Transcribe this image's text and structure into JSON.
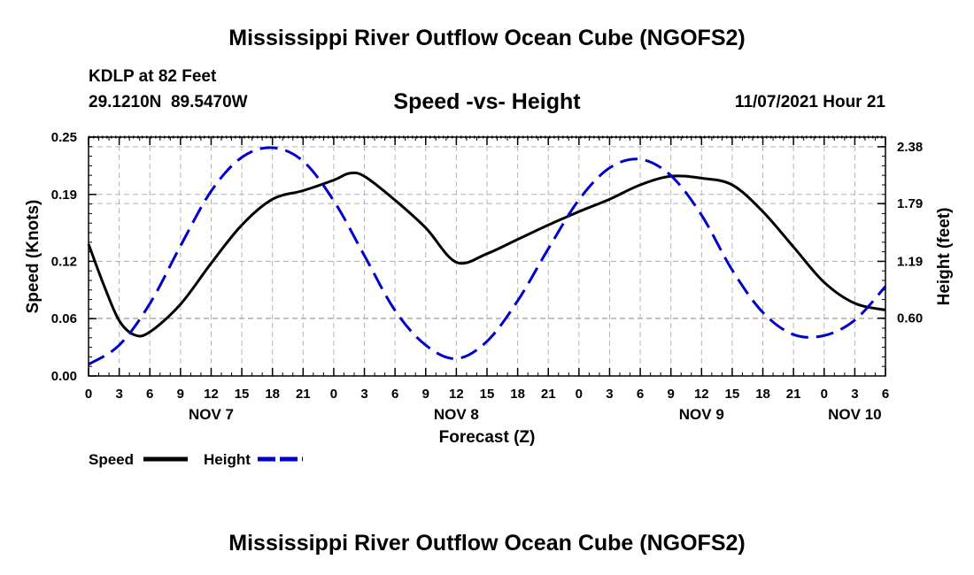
{
  "page": {
    "title": "Mississippi River Outflow Ocean Cube (NGOFS2)",
    "station_line": "KDLP at 82 Feet",
    "coords_line": "29.1210N  89.5470W",
    "subtitle": "Speed -vs- Height",
    "datetime": "11/07/2021 Hour 21",
    "footer_title": "Mississippi River Outflow Ocean Cube (NGOFS2)"
  },
  "colors": {
    "speed": "#000000",
    "height": "#0000cc",
    "grid": "#b4b4b4"
  },
  "chart_data": {
    "type": "line",
    "title": "Speed -vs- Height",
    "xlabel": "Forecast (Z)",
    "ylabel": "Speed (Knots)",
    "y2label": "Height (feet)",
    "x_unit": "hours from Nov 7 00Z",
    "xlim": [
      0,
      78
    ],
    "x_ticks": [
      0,
      3,
      6,
      9,
      12,
      15,
      18,
      21,
      24,
      27,
      30,
      33,
      36,
      39,
      42,
      45,
      48,
      51,
      54,
      57,
      60,
      63,
      66,
      69,
      72,
      75,
      78
    ],
    "x_tick_labels": [
      "0",
      "3",
      "6",
      "9",
      "12",
      "15",
      "18",
      "21",
      "0",
      "3",
      "6",
      "9",
      "12",
      "15",
      "18",
      "21",
      "0",
      "3",
      "6",
      "9",
      "12",
      "15",
      "18",
      "21",
      "0",
      "3",
      "6"
    ],
    "date_labels": [
      {
        "hour": 12,
        "label": "NOV 7"
      },
      {
        "hour": 36,
        "label": "NOV 8"
      },
      {
        "hour": 60,
        "label": "NOV 9"
      },
      {
        "hour": 75,
        "label": "NOV 10"
      }
    ],
    "ylim": [
      0,
      0.25
    ],
    "y_ticks": [
      0.0,
      0.06,
      0.12,
      0.19,
      0.25
    ],
    "y_tick_labels": [
      "0.00",
      "0.06",
      "0.12",
      "0.19",
      "0.25"
    ],
    "y2_ticks": [
      0.6,
      1.19,
      1.79,
      2.38
    ],
    "y2_tick_labels": [
      "0.60",
      "1.19",
      "1.79",
      "2.38"
    ],
    "y2lim": [
      0.0,
      2.48
    ],
    "legend": [
      {
        "name": "Speed",
        "style": "solid"
      },
      {
        "name": "Height",
        "style": "dashed"
      }
    ],
    "series": [
      {
        "name": "Speed",
        "axis": "left",
        "style": "solid",
        "x": [
          0,
          1.5,
          3,
          4.5,
          6,
          9,
          12,
          15,
          18,
          21,
          24,
          25.5,
          27,
          30,
          33,
          36,
          39,
          42,
          45,
          48,
          51,
          54,
          57,
          60,
          63,
          66,
          69,
          72,
          75,
          78
        ],
        "y": [
          0.138,
          0.095,
          0.058,
          0.043,
          0.046,
          0.075,
          0.118,
          0.158,
          0.185,
          0.194,
          0.205,
          0.212,
          0.209,
          0.184,
          0.155,
          0.119,
          0.128,
          0.143,
          0.158,
          0.172,
          0.185,
          0.2,
          0.209,
          0.207,
          0.2,
          0.172,
          0.135,
          0.098,
          0.076,
          0.069
        ]
      },
      {
        "name": "Height",
        "axis": "right",
        "style": "dashed",
        "x": [
          0,
          3,
          6,
          9,
          12,
          15,
          18,
          21,
          24,
          27,
          30,
          33,
          36,
          39,
          42,
          45,
          48,
          51,
          54,
          57,
          60,
          63,
          66,
          69,
          72,
          75,
          78
        ],
        "y": [
          0.12,
          0.32,
          0.75,
          1.35,
          1.92,
          2.27,
          2.37,
          2.23,
          1.82,
          1.25,
          0.68,
          0.32,
          0.18,
          0.36,
          0.78,
          1.32,
          1.83,
          2.16,
          2.25,
          2.08,
          1.67,
          1.1,
          0.66,
          0.43,
          0.42,
          0.58,
          0.93
        ]
      }
    ]
  }
}
